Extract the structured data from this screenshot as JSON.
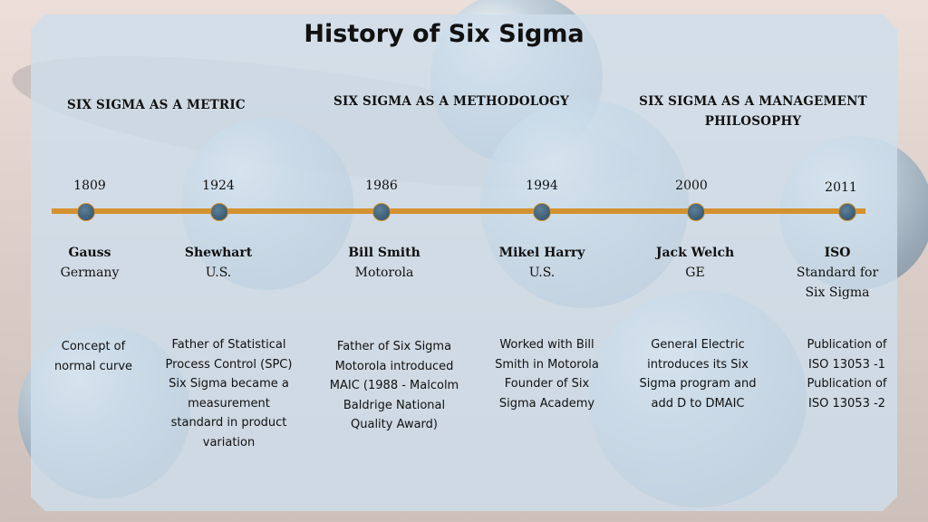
{
  "title": "History of Six Sigma",
  "eras": [
    "SIX SIGMA AS A METRIC",
    "SIX SIGMA AS A METHODOLOGY",
    "SIX SIGMA AS A MANAGEMENT PHILOSOPHY"
  ],
  "colors": {
    "line": "#d4922f",
    "dot": "#3a5d76",
    "panel": "#cedeec"
  },
  "milestones": [
    {
      "year": "1809",
      "name": "Gauss",
      "org": "Germany",
      "description": "Concept of normal curve"
    },
    {
      "year": "1924",
      "name": "Shewhart",
      "org": "U.S.",
      "description": "Father of Statistical Process Control (SPC) Six Sigma became a measurement standard in product variation"
    },
    {
      "year": "1986",
      "name": "Bill Smith",
      "org": "Motorola",
      "description": "Father of Six Sigma Motorola introduced MAIC (1988 - Malcolm Baldrige National Quality Award)"
    },
    {
      "year": "1994",
      "name": "Mikel Harry",
      "org": "U.S.",
      "description": "Worked with Bill Smith in Motorola Founder of Six Sigma Academy"
    },
    {
      "year": "2000",
      "name": "Jack Welch",
      "org": "GE",
      "description": "General Electric introduces its Six Sigma program and add D to DMAIC"
    },
    {
      "year": "2011",
      "name": "ISO",
      "org": "Standard for Six Sigma",
      "description": "Publication of ISO 13053 -1 Publication of ISO 13053 -2"
    }
  ]
}
